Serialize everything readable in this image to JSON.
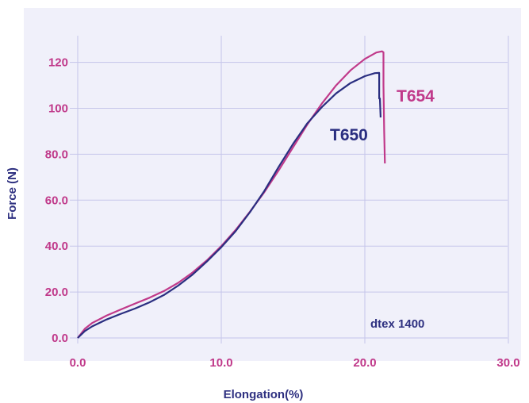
{
  "colors": {
    "panel": "#f0f0fa",
    "grid": "#c5c5ea",
    "tick_text": "#c0398a",
    "axis_title": "#2e3080",
    "t654": "#c0398a",
    "t650": "#2a2e80"
  },
  "chart_data": {
    "type": "line",
    "title": "",
    "xlabel": "Elongation(%)",
    "ylabel": "Force (N)",
    "xlim": [
      0,
      30
    ],
    "ylim": [
      0,
      126
    ],
    "grid": true,
    "x_ticks": [
      0,
      10,
      20,
      30
    ],
    "x_tick_labels": [
      "0.0",
      "10.0",
      "20.0",
      "30.0"
    ],
    "y_ticks": [
      0,
      20,
      40,
      60,
      80,
      100,
      120
    ],
    "y_tick_labels": [
      "0.0",
      "20.0",
      "40.0",
      "60.0",
      "80.0",
      "100",
      "120"
    ],
    "annotation": "dtex 1400",
    "series": [
      {
        "name": "T654",
        "points": [
          [
            0,
            0
          ],
          [
            0.5,
            4
          ],
          [
            1,
            6.5
          ],
          [
            2,
            9.7
          ],
          [
            3,
            12.4
          ],
          [
            4,
            15
          ],
          [
            5,
            17.5
          ],
          [
            6,
            20.4
          ],
          [
            7,
            24
          ],
          [
            8,
            28.5
          ],
          [
            9,
            33.8
          ],
          [
            10,
            40
          ],
          [
            11,
            47
          ],
          [
            12,
            55
          ],
          [
            13,
            63.5
          ],
          [
            14,
            73
          ],
          [
            15,
            83
          ],
          [
            16,
            93
          ],
          [
            17,
            102
          ],
          [
            18,
            110
          ],
          [
            19,
            116.5
          ],
          [
            20,
            121.5
          ],
          [
            20.8,
            124.3
          ],
          [
            21.2,
            124.8
          ],
          [
            21.3,
            124.4
          ],
          [
            21.3,
            110
          ],
          [
            21.35,
            90
          ],
          [
            21.4,
            76
          ]
        ]
      },
      {
        "name": "T650",
        "points": [
          [
            0,
            0
          ],
          [
            0.5,
            3
          ],
          [
            1,
            5
          ],
          [
            2,
            8
          ],
          [
            3,
            10.5
          ],
          [
            4,
            12.8
          ],
          [
            5,
            15.5
          ],
          [
            6,
            18.7
          ],
          [
            7,
            22.8
          ],
          [
            8,
            27.6
          ],
          [
            9,
            33.3
          ],
          [
            10,
            39.5
          ],
          [
            11,
            46.5
          ],
          [
            12,
            54.8
          ],
          [
            13,
            64
          ],
          [
            14,
            74.5
          ],
          [
            15,
            84.5
          ],
          [
            16,
            93.5
          ],
          [
            17,
            100.5
          ],
          [
            18,
            106.5
          ],
          [
            19,
            111
          ],
          [
            20,
            114
          ],
          [
            20.7,
            115.3
          ],
          [
            21,
            115.4
          ],
          [
            21,
            104.3
          ],
          [
            21.05,
            104.3
          ],
          [
            21.1,
            96
          ]
        ]
      }
    ]
  }
}
